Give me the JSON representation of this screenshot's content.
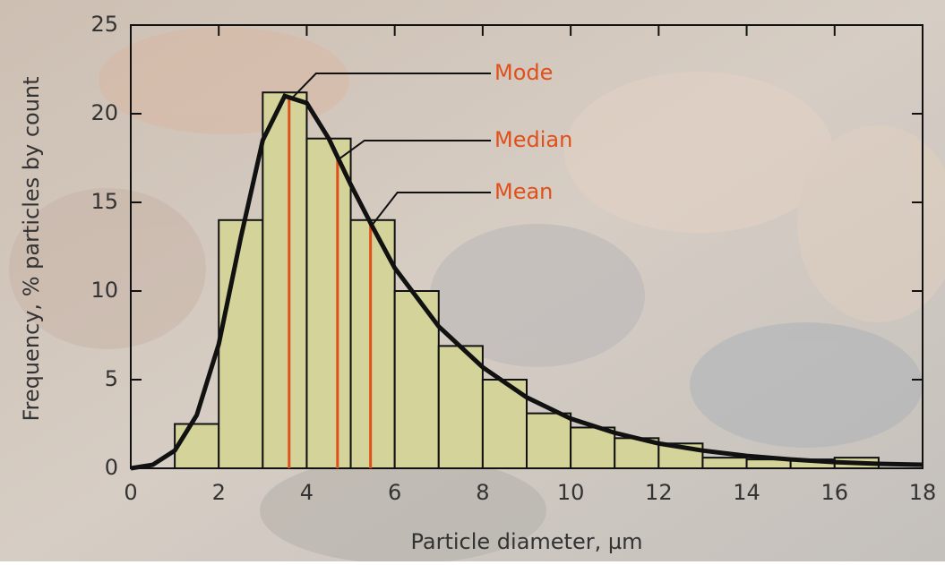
{
  "chart_data": {
    "type": "histogram",
    "xlabel": "Particle diameter, µm",
    "ylabel": "Frequency, % particles by count",
    "bins": [
      1,
      2,
      3,
      4,
      5,
      6,
      7,
      8,
      9,
      10,
      11,
      12,
      13,
      14,
      15,
      16,
      17
    ],
    "values": [
      2.5,
      14,
      21.2,
      18.6,
      14,
      10,
      6.9,
      5,
      3.1,
      2.3,
      1.7,
      1.4,
      0.6,
      0.5,
      0.5,
      0.6
    ],
    "color": "#d3d39a",
    "curve": {
      "type": "line",
      "color": "#111111",
      "x": [
        0,
        0.5,
        1,
        1.5,
        2,
        2.5,
        3,
        3.5,
        4,
        4.5,
        5,
        5.5,
        6,
        7,
        8,
        9,
        10,
        11,
        12,
        13,
        14,
        15,
        16,
        17,
        18
      ],
      "values": [
        0,
        0.2,
        1,
        3,
        7,
        13,
        18.5,
        21,
        20.6,
        18.6,
        16,
        13.6,
        11.3,
        8,
        5.7,
        4,
        2.8,
        2,
        1.4,
        1,
        0.7,
        0.5,
        0.35,
        0.25,
        0.2
      ]
    },
    "markers": [
      {
        "label": "Mode",
        "x": 3.6,
        "color": "#e0501a"
      },
      {
        "label": "Median",
        "x": 4.7,
        "color": "#e0501a"
      },
      {
        "label": "Mean",
        "x": 5.45,
        "color": "#e0501a"
      }
    ],
    "xlim": [
      0,
      18
    ],
    "xticks": [
      0,
      2,
      4,
      6,
      8,
      10,
      12,
      14,
      16,
      18
    ],
    "ylim": [
      0,
      25
    ],
    "yticks": [
      0,
      5,
      10,
      15,
      20,
      25
    ]
  }
}
